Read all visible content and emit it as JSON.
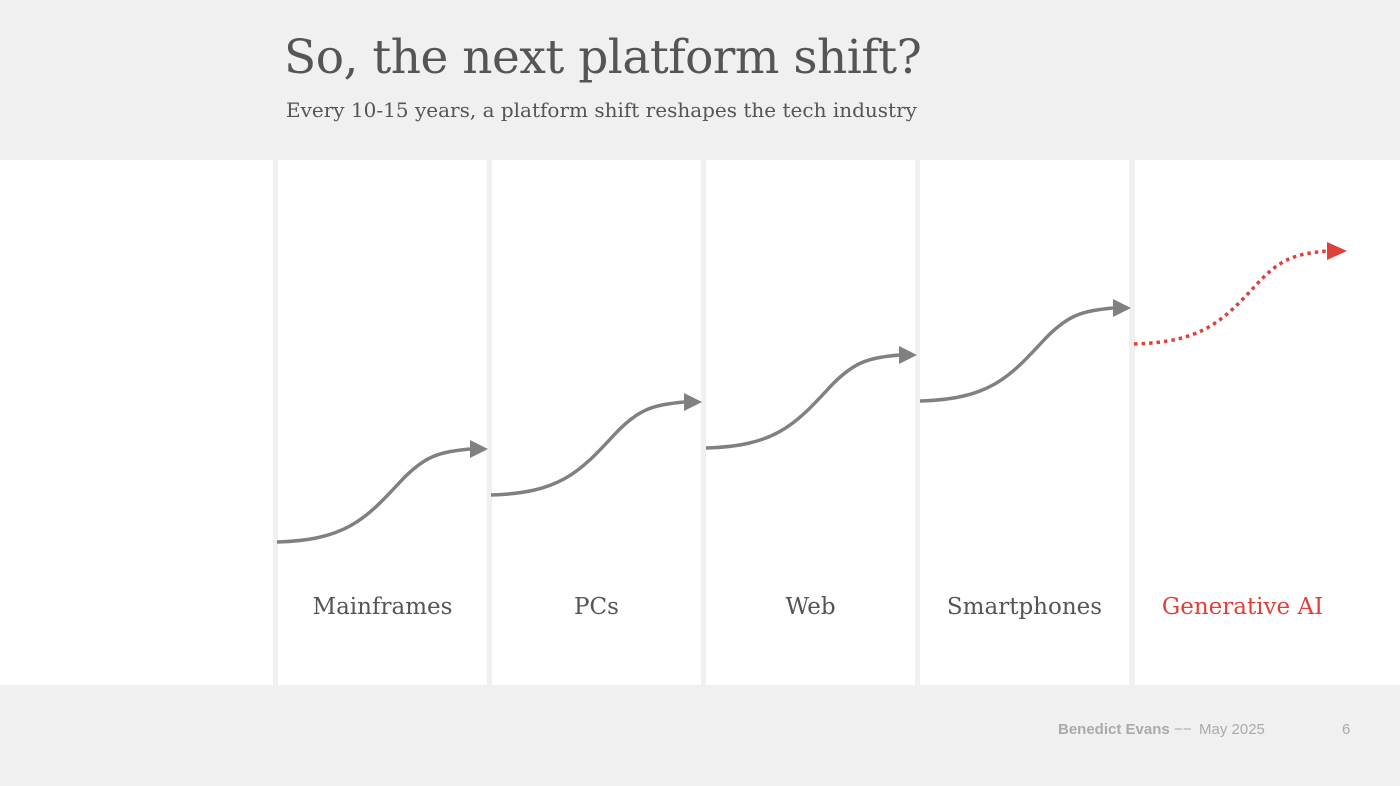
{
  "slide": {
    "title": "So, the next platform shift?",
    "subtitle": "Every 10-15 years, a platform shift reshapes the tech industry"
  },
  "diagram": {
    "platforms": [
      {
        "name": "Mainframes",
        "future": false
      },
      {
        "name": "PCs",
        "future": false
      },
      {
        "name": "Web",
        "future": false
      },
      {
        "name": "Smartphones",
        "future": false
      },
      {
        "name": "Generative AI",
        "future": true
      }
    ],
    "colors": {
      "curve": "#808080",
      "future": "#e0403a",
      "text": "#555555",
      "background": "#f0f0f0",
      "panel": "#ffffff"
    }
  },
  "footer": {
    "author": "Benedict Evans",
    "separator": "−−",
    "date": "May 2025",
    "page": "6"
  }
}
